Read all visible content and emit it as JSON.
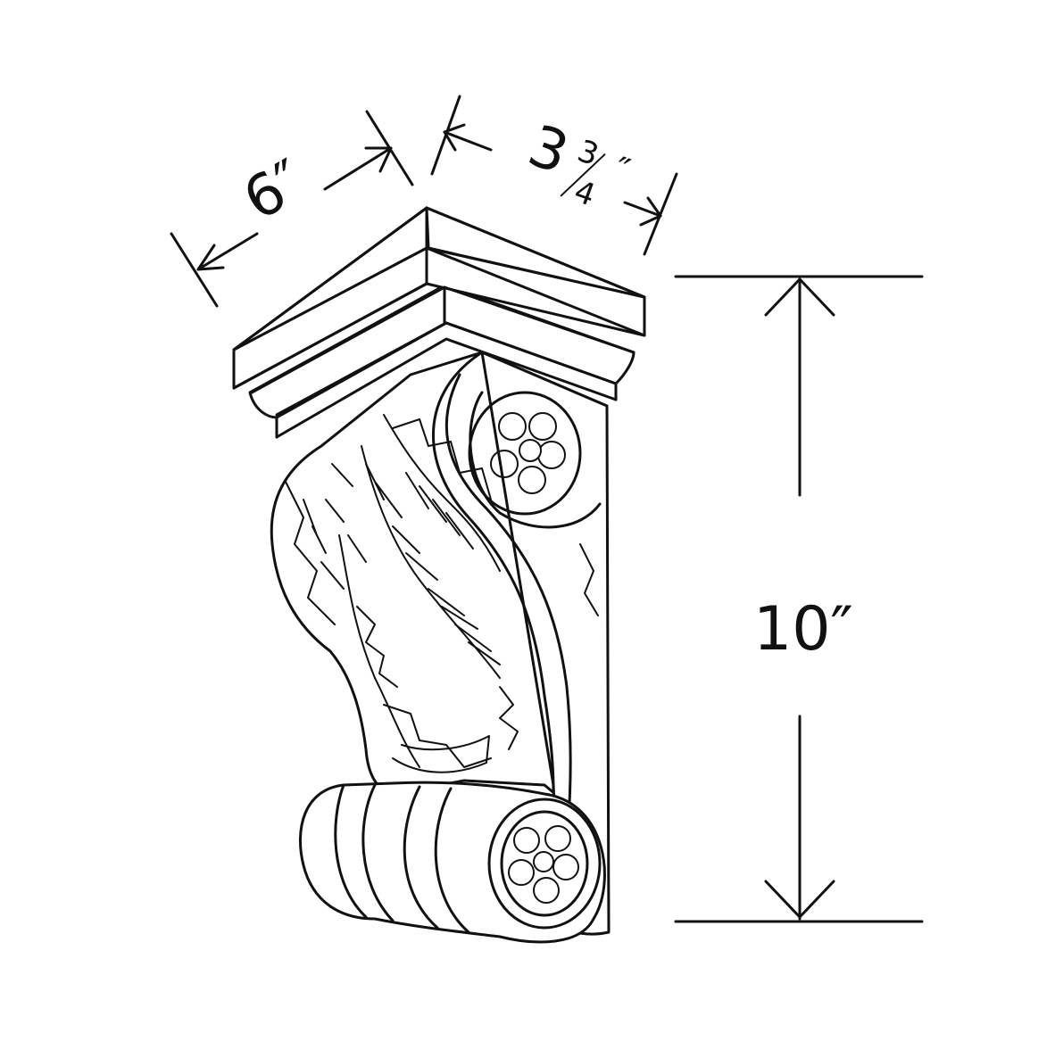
{
  "colors": {
    "line": "#111111",
    "background": "#ffffff"
  },
  "dimensions": {
    "width": {
      "label": "6″"
    },
    "depth": {
      "whole": "3",
      "numerator": "3",
      "denominator": "4",
      "unit": "″"
    },
    "height": {
      "label": "10″"
    }
  }
}
